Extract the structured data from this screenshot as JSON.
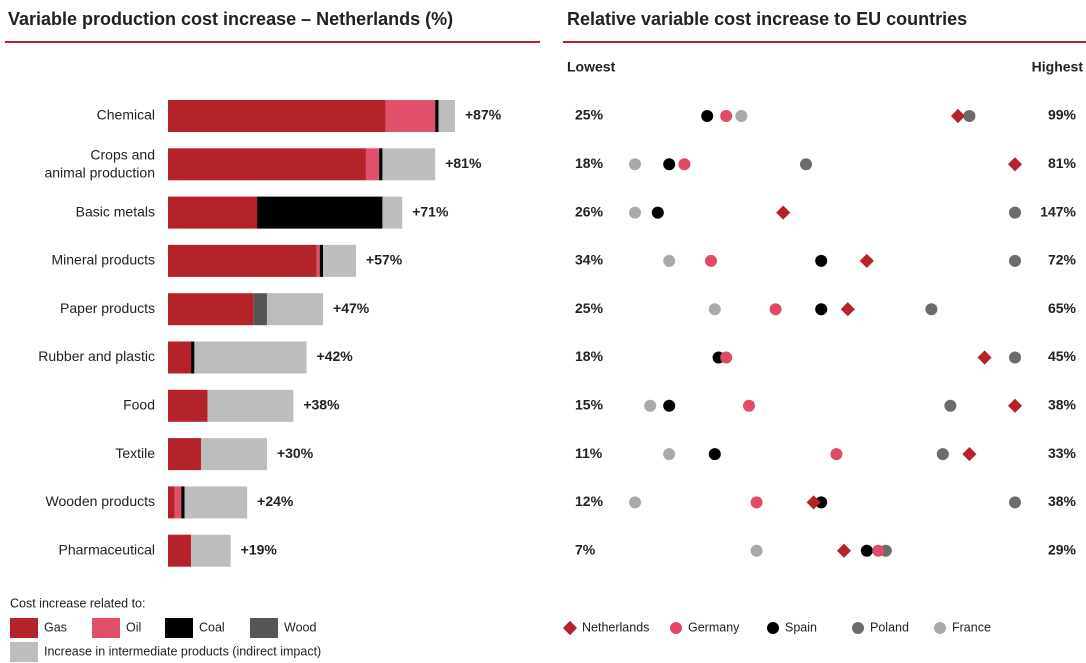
{
  "chart_data": [
    {
      "type": "stacked-bar",
      "title": "Variable production cost increase – Netherlands (%)",
      "categories": [
        "Chemical",
        "Crops and animal production",
        "Basic metals",
        "Mineral products",
        "Paper products",
        "Rubber and plastic",
        "Food",
        "Textile",
        "Wooden products",
        "Pharmaceutical"
      ],
      "series": [
        {
          "name": "Gas",
          "color": "#b5232a",
          "values": [
            66,
            60,
            27,
            45,
            26,
            7,
            12,
            10,
            2,
            7
          ]
        },
        {
          "name": "Oil",
          "color": "#e0506a",
          "values": [
            15,
            4,
            0,
            1,
            0,
            0,
            0,
            0,
            2,
            0
          ]
        },
        {
          "name": "Coal",
          "color": "#000000",
          "values": [
            1,
            1,
            38,
            1,
            0,
            1,
            0,
            0,
            1,
            0
          ]
        },
        {
          "name": "Wood",
          "color": "#555555",
          "values": [
            0,
            0,
            0,
            0,
            4,
            0,
            0,
            0,
            0,
            0
          ]
        },
        {
          "name": "Increase in intermediate products (indirect impact)",
          "color": "#bdbdbd",
          "values": [
            5,
            16,
            6,
            10,
            17,
            34,
            26,
            20,
            19,
            12
          ]
        }
      ],
      "total_labels": [
        "+87%",
        "+81%",
        "+71%",
        "+57%",
        "+47%",
        "+42%",
        "+38%",
        "+30%",
        "+24%",
        "+19%"
      ],
      "legend_title": "Cost increase related to:"
    },
    {
      "type": "dot",
      "title": "Relative variable cost increase to EU countries",
      "low_header": "Lowest",
      "high_header": "Highest",
      "low_labels": [
        "25%",
        "18%",
        "26%",
        "34%",
        "25%",
        "18%",
        "15%",
        "11%",
        "12%",
        "7%"
      ],
      "high_labels": [
        "99%",
        "81%",
        "147%",
        "72%",
        "65%",
        "45%",
        "38%",
        "33%",
        "38%",
        "29%"
      ],
      "xlim": [
        0,
        100
      ],
      "series": [
        {
          "name": "Netherlands",
          "color": "#b5232a",
          "marker": "diamond",
          "values": [
            85,
            100,
            39,
            61,
            56,
            92,
            100,
            88,
            47,
            55
          ]
        },
        {
          "name": "Germany",
          "color": "#e04a66",
          "marker": "circle",
          "values": [
            24,
            13,
            null,
            20,
            37,
            24,
            30,
            53,
            32,
            64
          ]
        },
        {
          "name": "Spain",
          "color": "#000000",
          "marker": "circle",
          "values": [
            19,
            9,
            6,
            49,
            49,
            22,
            9,
            21,
            49,
            61
          ]
        },
        {
          "name": "Poland",
          "color": "#6b6b6b",
          "marker": "circle",
          "values": [
            88,
            45,
            100,
            100,
            78,
            100,
            83,
            81,
            100,
            66
          ]
        },
        {
          "name": "France",
          "color": "#a9a9a9",
          "marker": "circle",
          "values": [
            28,
            0,
            0,
            9,
            21,
            22,
            4,
            9,
            0,
            32
          ]
        }
      ]
    }
  ]
}
